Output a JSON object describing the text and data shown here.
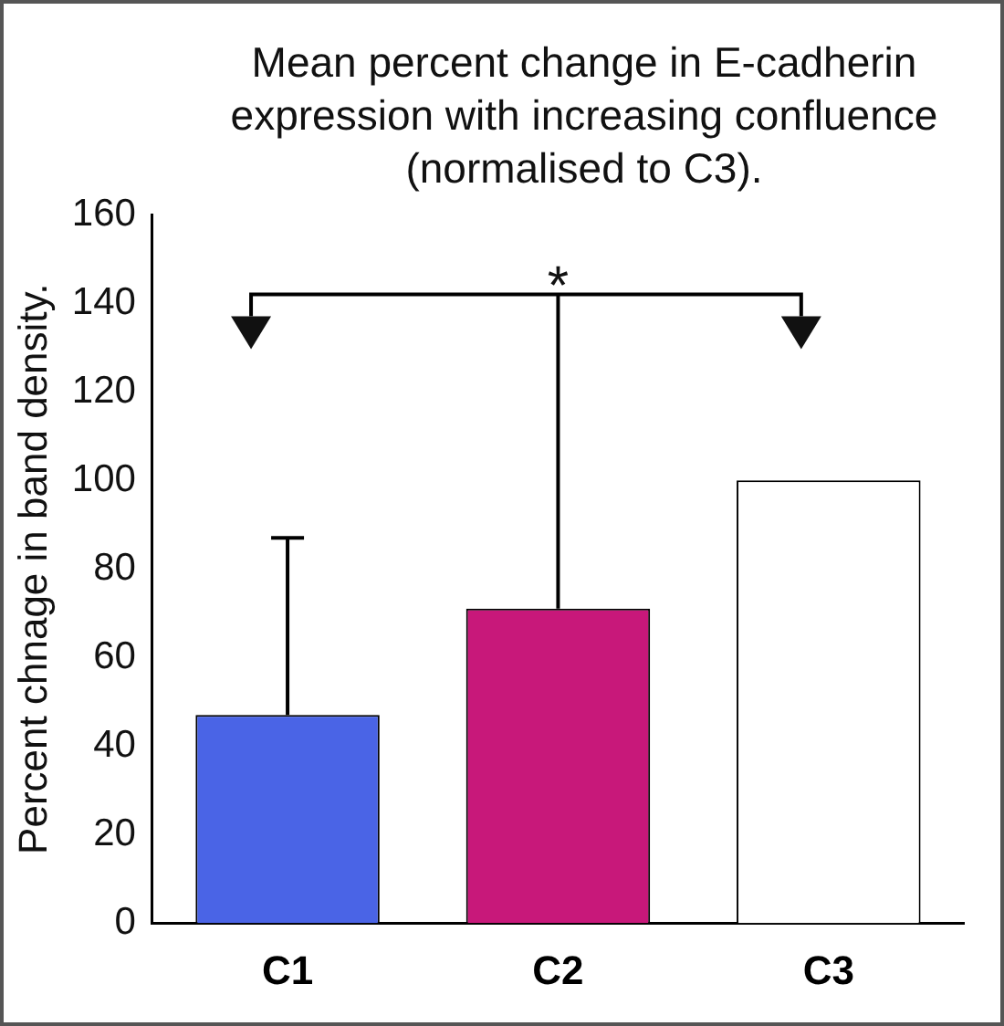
{
  "chart_data": {
    "type": "bar",
    "title": "Mean percent change in E-cadherin expression with increasing confluence (normalised to C3).",
    "ylabel": "Percent chnage in band density.",
    "categories": [
      "C1",
      "C2",
      "C3"
    ],
    "values": [
      47,
      71,
      100
    ],
    "colors": [
      "#4a64e6",
      "#c8187a",
      "#ffffff"
    ],
    "errors": [
      [
        47,
        87
      ],
      [
        71,
        142
      ],
      null
    ],
    "ylim": [
      0,
      160
    ],
    "yticks": [
      0,
      20,
      40,
      60,
      80,
      100,
      120,
      140,
      160
    ],
    "grid": false,
    "legend": false,
    "annotations": [
      "*"
    ]
  }
}
